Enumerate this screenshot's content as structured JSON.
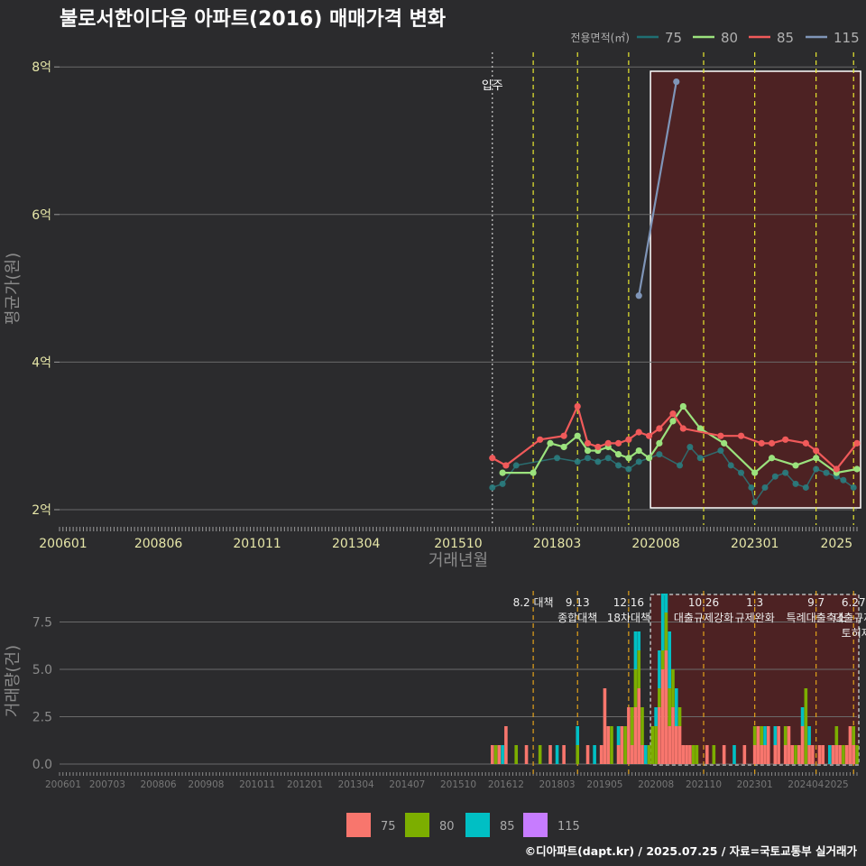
{
  "title": "불로서한이다음 아파트(2016) 매매가격 변화",
  "footer": "©디아파트(dapt.kr) / 2025.07.25 / 자료=국토교통부 실거래가",
  "chart_data": [
    {
      "type": "line",
      "name": "price",
      "ylabel": "평균가(원)",
      "xlabel": "거래년월",
      "yticks": [
        {
          "v": 2,
          "label": "2억"
        },
        {
          "v": 4,
          "label": "4억"
        },
        {
          "v": 6,
          "label": "6억"
        },
        {
          "v": 8,
          "label": "8억"
        }
      ],
      "ylim": [
        1.75,
        8.1
      ],
      "xlim": [
        "2006-01",
        "2025-07"
      ],
      "xticks": [
        "200601",
        "200806",
        "201011",
        "201304",
        "201510",
        "201803",
        "202008",
        "202301",
        "2025"
      ],
      "legend": {
        "title": "전용면적(㎡)",
        "items": [
          {
            "label": "75",
            "color": "#1f6f73"
          },
          {
            "label": "80",
            "color": "#9be27d"
          },
          {
            "label": "85",
            "color": "#f05a5a"
          },
          {
            "label": "115",
            "color": "#7f95b8"
          }
        ],
        "position": "top-right"
      },
      "annotation": {
        "label": "입주",
        "x": "2016-08"
      },
      "policy_lines": [
        "2017-08",
        "2018-09",
        "2019-12",
        "2021-10",
        "2023-01",
        "2024-07",
        "2025-06"
      ],
      "highlight": {
        "from": "2020-08",
        "to": "2025-07"
      },
      "series": [
        {
          "name": "75",
          "color": "#2a7d80",
          "points": [
            [
              "2016-08",
              2.3
            ],
            [
              "2016-11",
              2.35
            ],
            [
              "2017-03",
              2.6
            ],
            [
              "2018-03",
              2.7
            ],
            [
              "2018-09",
              2.65
            ],
            [
              "2018-12",
              2.7
            ],
            [
              "2019-03",
              2.65
            ],
            [
              "2019-06",
              2.7
            ],
            [
              "2019-09",
              2.6
            ],
            [
              "2019-12",
              2.55
            ],
            [
              "2020-03",
              2.65
            ],
            [
              "2020-06",
              2.7
            ],
            [
              "2020-09",
              2.75
            ],
            [
              "2021-03",
              2.6
            ],
            [
              "2021-06",
              2.85
            ],
            [
              "2021-09",
              2.7
            ],
            [
              "2022-03",
              2.8
            ],
            [
              "2022-06",
              2.6
            ],
            [
              "2022-09",
              2.5
            ],
            [
              "2022-12",
              2.3
            ],
            [
              "2023-01",
              2.1
            ],
            [
              "2023-04",
              2.3
            ],
            [
              "2023-07",
              2.45
            ],
            [
              "2023-10",
              2.5
            ],
            [
              "2024-01",
              2.35
            ],
            [
              "2024-04",
              2.3
            ],
            [
              "2024-07",
              2.55
            ],
            [
              "2024-10",
              2.5
            ],
            [
              "2025-01",
              2.45
            ],
            [
              "2025-03",
              2.4
            ],
            [
              "2025-06",
              2.3
            ]
          ]
        },
        {
          "name": "80",
          "color": "#9be27d",
          "points": [
            [
              "2016-11",
              2.5
            ],
            [
              "2017-08",
              2.5
            ],
            [
              "2018-01",
              2.9
            ],
            [
              "2018-05",
              2.85
            ],
            [
              "2018-09",
              3.0
            ],
            [
              "2018-12",
              2.8
            ],
            [
              "2019-03",
              2.8
            ],
            [
              "2019-06",
              2.85
            ],
            [
              "2019-09",
              2.75
            ],
            [
              "2019-12",
              2.7
            ],
            [
              "2020-03",
              2.8
            ],
            [
              "2020-06",
              2.7
            ],
            [
              "2020-09",
              2.9
            ],
            [
              "2021-01",
              3.2
            ],
            [
              "2021-04",
              3.4
            ],
            [
              "2021-09",
              3.1
            ],
            [
              "2022-04",
              2.9
            ],
            [
              "2023-01",
              2.5
            ],
            [
              "2023-06",
              2.7
            ],
            [
              "2024-01",
              2.6
            ],
            [
              "2024-07",
              2.7
            ],
            [
              "2025-01",
              2.5
            ],
            [
              "2025-07",
              2.55
            ]
          ]
        },
        {
          "name": "85",
          "color": "#f05a5a",
          "points": [
            [
              "2016-08",
              2.7
            ],
            [
              "2016-12",
              2.6
            ],
            [
              "2017-10",
              2.95
            ],
            [
              "2018-05",
              3.0
            ],
            [
              "2018-09",
              3.4
            ],
            [
              "2018-12",
              2.9
            ],
            [
              "2019-03",
              2.85
            ],
            [
              "2019-06",
              2.9
            ],
            [
              "2019-09",
              2.9
            ],
            [
              "2019-12",
              2.95
            ],
            [
              "2020-03",
              3.05
            ],
            [
              "2020-06",
              3.0
            ],
            [
              "2020-09",
              3.1
            ],
            [
              "2021-01",
              3.3
            ],
            [
              "2021-04",
              3.1
            ],
            [
              "2022-03",
              3.0
            ],
            [
              "2022-09",
              3.0
            ],
            [
              "2023-03",
              2.9
            ],
            [
              "2023-06",
              2.9
            ],
            [
              "2023-10",
              2.95
            ],
            [
              "2024-04",
              2.9
            ],
            [
              "2024-07",
              2.8
            ],
            [
              "2025-01",
              2.55
            ],
            [
              "2025-07",
              2.9
            ]
          ]
        },
        {
          "name": "115",
          "color": "#7f95b8",
          "points": [
            [
              "2020-03",
              4.9
            ],
            [
              "2021-02",
              7.8
            ]
          ]
        }
      ]
    },
    {
      "type": "bar",
      "name": "volume",
      "ylabel": "거래량(건)",
      "yticks": [
        {
          "v": 0,
          "label": "0.0"
        },
        {
          "v": 2.5,
          "label": "2.5"
        },
        {
          "v": 5,
          "label": "5.0"
        },
        {
          "v": 7.5,
          "label": "7.5"
        }
      ],
      "ylim": [
        -0.5,
        9.2
      ],
      "xticks": [
        "200601",
        "200703",
        "200806",
        "200908",
        "201011",
        "201201",
        "201304",
        "201407",
        "201510",
        "201612",
        "201803",
        "201905",
        "202008",
        "202110",
        "202301",
        "202404",
        "2025"
      ],
      "legend": {
        "items": [
          {
            "label": "75",
            "color": "#f8766d"
          },
          {
            "label": "80",
            "color": "#7cae00"
          },
          {
            "label": "85",
            "color": "#00bfc4"
          },
          {
            "label": "115",
            "color": "#c77cff"
          }
        ],
        "position": "bottom"
      },
      "events": [
        {
          "x": "2017-08",
          "lines": [
            "8.2 대책"
          ]
        },
        {
          "x": "2018-09",
          "lines": [
            "9.13",
            "종합대책"
          ]
        },
        {
          "x": "2019-12",
          "lines": [
            "12.16",
            "18차대책"
          ]
        },
        {
          "x": "2021-10",
          "lines": [
            "10.26",
            "대출규제강화"
          ]
        },
        {
          "x": "2023-01",
          "lines": [
            "1.3",
            "규제완화"
          ]
        },
        {
          "x": "2024-07",
          "lines": [
            "9.7",
            "특례대출축소"
          ]
        },
        {
          "x": "2025-06",
          "lines": [
            "6.27",
            "대출규제"
          ]
        }
      ],
      "extra_event_text": "토허제 해제",
      "highlight": {
        "from": "2020-08",
        "to": "2025-07"
      },
      "bars": [
        [
          "2016-08",
          [
            1,
            0,
            0,
            0
          ]
        ],
        [
          "2016-09",
          [
            0,
            1,
            0,
            0
          ]
        ],
        [
          "2016-10",
          [
            1,
            0,
            0,
            0
          ]
        ],
        [
          "2016-11",
          [
            0,
            0,
            1,
            0
          ]
        ],
        [
          "2016-12",
          [
            2,
            0,
            0,
            0
          ]
        ],
        [
          "2017-03",
          [
            0,
            1,
            0,
            0
          ]
        ],
        [
          "2017-06",
          [
            1,
            0,
            0,
            0
          ]
        ],
        [
          "2017-10",
          [
            0,
            1,
            0,
            0
          ]
        ],
        [
          "2018-01",
          [
            1,
            0,
            0,
            0
          ]
        ],
        [
          "2018-03",
          [
            0,
            0,
            1,
            0
          ]
        ],
        [
          "2018-05",
          [
            1,
            0,
            0,
            0
          ]
        ],
        [
          "2018-09",
          [
            0,
            1,
            1,
            0
          ]
        ],
        [
          "2018-12",
          [
            1,
            0,
            0,
            0
          ]
        ],
        [
          "2019-02",
          [
            0,
            0,
            1,
            0
          ]
        ],
        [
          "2019-04",
          [
            1,
            0,
            0,
            0
          ]
        ],
        [
          "2019-05",
          [
            4,
            0,
            0,
            0
          ]
        ],
        [
          "2019-06",
          [
            2,
            0,
            0,
            0
          ]
        ],
        [
          "2019-07",
          [
            0,
            2,
            0,
            0
          ]
        ],
        [
          "2019-09",
          [
            1,
            0,
            1,
            0
          ]
        ],
        [
          "2019-10",
          [
            2,
            0,
            0,
            0
          ]
        ],
        [
          "2019-11",
          [
            0,
            2,
            0,
            0
          ]
        ],
        [
          "2019-12",
          [
            3,
            0,
            0,
            0
          ]
        ],
        [
          "2020-01",
          [
            1,
            2,
            0,
            0
          ]
        ],
        [
          "2020-02",
          [
            3,
            2,
            2,
            0
          ]
        ],
        [
          "2020-03",
          [
            4,
            2,
            1,
            0
          ]
        ],
        [
          "2020-04",
          [
            1,
            2,
            0,
            0
          ]
        ],
        [
          "2020-05",
          [
            0,
            0,
            1,
            0
          ]
        ],
        [
          "2020-06",
          [
            0,
            1,
            0,
            0
          ]
        ],
        [
          "2020-07",
          [
            0,
            2,
            0,
            0
          ]
        ],
        [
          "2020-08",
          [
            0,
            2,
            1,
            0
          ]
        ],
        [
          "2020-09",
          [
            3,
            1,
            2,
            0
          ]
        ],
        [
          "2020-10",
          [
            5,
            1,
            3,
            0
          ]
        ],
        [
          "2020-11",
          [
            6,
            2,
            1,
            0
          ]
        ],
        [
          "2020-12",
          [
            2,
            2,
            3,
            0
          ]
        ],
        [
          "2021-01",
          [
            3,
            2,
            0,
            0
          ]
        ],
        [
          "2021-02",
          [
            2,
            0,
            2,
            0
          ]
        ],
        [
          "2021-03",
          [
            2,
            1,
            0,
            0
          ]
        ],
        [
          "2021-04",
          [
            1,
            0,
            0,
            0
          ]
        ],
        [
          "2021-05",
          [
            1,
            0,
            0,
            0
          ]
        ],
        [
          "2021-06",
          [
            1,
            0,
            0,
            0
          ]
        ],
        [
          "2021-07",
          [
            0,
            1,
            0,
            0
          ]
        ],
        [
          "2021-08",
          [
            0,
            1,
            0,
            0
          ]
        ],
        [
          "2021-11",
          [
            1,
            0,
            0,
            0
          ]
        ],
        [
          "2022-01",
          [
            0,
            1,
            0,
            0
          ]
        ],
        [
          "2022-04",
          [
            1,
            0,
            0,
            0
          ]
        ],
        [
          "2022-07",
          [
            0,
            0,
            1,
            0
          ]
        ],
        [
          "2022-10",
          [
            1,
            0,
            0,
            0
          ]
        ],
        [
          "2023-01",
          [
            1,
            1,
            0,
            0
          ]
        ],
        [
          "2023-02",
          [
            2,
            0,
            0,
            0
          ]
        ],
        [
          "2023-03",
          [
            1,
            1,
            0,
            0
          ]
        ],
        [
          "2023-04",
          [
            1,
            0,
            1,
            0
          ]
        ],
        [
          "2023-05",
          [
            2,
            0,
            0,
            0
          ]
        ],
        [
          "2023-07",
          [
            1,
            0,
            1,
            0
          ]
        ],
        [
          "2023-08",
          [
            2,
            0,
            0,
            0
          ]
        ],
        [
          "2023-10",
          [
            1,
            1,
            0,
            0
          ]
        ],
        [
          "2023-11",
          [
            2,
            0,
            0,
            0
          ]
        ],
        [
          "2023-12",
          [
            1,
            0,
            0,
            0
          ]
        ],
        [
          "2024-01",
          [
            0,
            1,
            0,
            0
          ]
        ],
        [
          "2024-02",
          [
            1,
            0,
            0,
            0
          ]
        ],
        [
          "2024-03",
          [
            2,
            0,
            1,
            0
          ]
        ],
        [
          "2024-04",
          [
            0,
            4,
            0,
            0
          ]
        ],
        [
          "2024-05",
          [
            1,
            0,
            1,
            0
          ]
        ],
        [
          "2024-06",
          [
            1,
            0,
            0,
            0
          ]
        ],
        [
          "2024-08",
          [
            1,
            0,
            0,
            0
          ]
        ],
        [
          "2024-09",
          [
            1,
            0,
            0,
            0
          ]
        ],
        [
          "2024-11",
          [
            0,
            0,
            1,
            0
          ]
        ],
        [
          "2024-12",
          [
            1,
            0,
            0,
            0
          ]
        ],
        [
          "2025-01",
          [
            1,
            1,
            0,
            0
          ]
        ],
        [
          "2025-02",
          [
            1,
            0,
            0,
            0
          ]
        ],
        [
          "2025-03",
          [
            0,
            1,
            0,
            0
          ]
        ],
        [
          "2025-04",
          [
            1,
            0,
            0,
            0
          ]
        ],
        [
          "2025-05",
          [
            2,
            0,
            0,
            0
          ]
        ],
        [
          "2025-06",
          [
            1,
            1,
            0,
            0
          ]
        ],
        [
          "2025-07",
          [
            0,
            1,
            0,
            0
          ]
        ]
      ]
    }
  ]
}
